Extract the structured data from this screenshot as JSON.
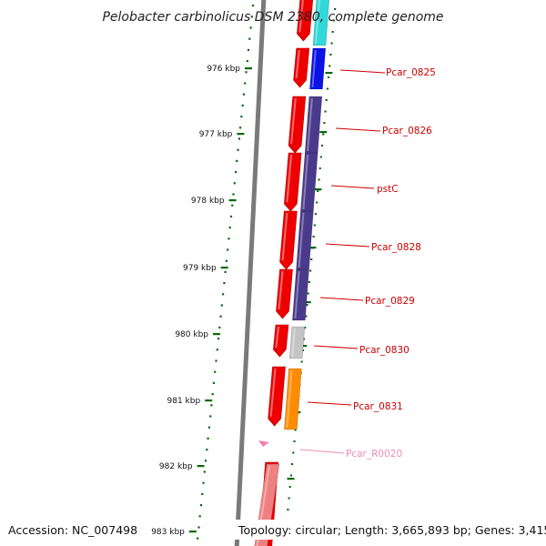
{
  "title": "Pelobacter carbinolicus DSM 2380, complete genome",
  "footer": {
    "accession": "Accession: NC_007498",
    "topology": "Topology: circular; Length: 3,665,893 bp; Genes: 3,415"
  },
  "scale_ticks": [
    {
      "label": "976 kbp"
    },
    {
      "label": "977 kbp"
    },
    {
      "label": "978 kbp"
    },
    {
      "label": "979 kbp"
    },
    {
      "label": "980 kbp"
    },
    {
      "label": "981 kbp"
    },
    {
      "label": "982 kbp"
    },
    {
      "label": "983 kbp"
    }
  ],
  "genes": [
    {
      "label": "",
      "color": "#30d8d8"
    },
    {
      "label": "Pcar_0825",
      "color": "#0a12e6"
    },
    {
      "label": "Pcar_0826",
      "color": "#4a3a8c"
    },
    {
      "label": "pstC",
      "color": "#4a3a8c"
    },
    {
      "label": "Pcar_0828",
      "color": "#4a3a8c"
    },
    {
      "label": "Pcar_0829",
      "color": "#4a3a8c"
    },
    {
      "label": "Pcar_0830",
      "color": "#c4c4c4"
    },
    {
      "label": "Pcar_0831",
      "color": "#ff8c00"
    },
    {
      "label": "Pcar_R0020",
      "color": "#f080b0"
    },
    {
      "label": "",
      "color": "#f08080"
    }
  ],
  "colors": {
    "cds": "#ee0000",
    "label": "#cc0000",
    "rna_label": "#f08cb4",
    "scale": "#0a6a0a",
    "backbone": "#777777"
  }
}
